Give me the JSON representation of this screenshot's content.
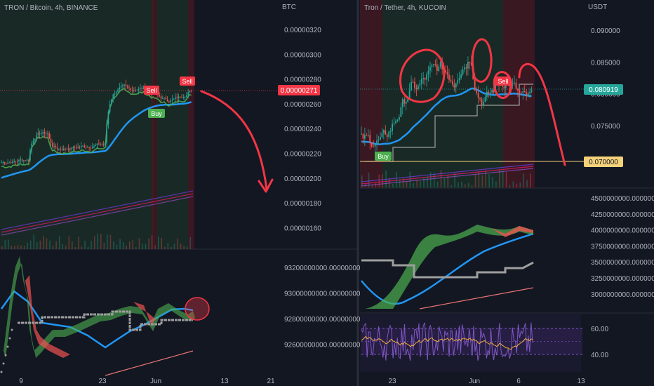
{
  "chart_data": [
    {
      "type": "candlestick",
      "title": "TRON / Bitcoin, 4h, BINANCE",
      "currency": "BTC",
      "y_ticks": [
        "0.00000320",
        "0.00000300",
        "0.00000280",
        "0.00000260",
        "0.00000240",
        "0.00000220",
        "0.00000200",
        "0.00000180",
        "0.00000160"
      ],
      "ylim": [
        1.45e-06,
        3.4e-06
      ],
      "price_tag": "0.00000271",
      "close": 2.71e-06,
      "x_ticks": [
        "9",
        "23",
        "Jun",
        "13",
        "21"
      ],
      "annotations": [
        "Sell",
        "Sell",
        "Buy"
      ],
      "overlays": [
        "blue moving average",
        "green ribbon",
        "red ribbon",
        "purple/pink lines",
        "red hand-drawn arrow"
      ],
      "colors": {
        "up": "#26a69a",
        "down": "#ef5350",
        "buy": "#4caf50",
        "sell": "#f23645",
        "ma": "#2196f3"
      }
    },
    {
      "type": "line",
      "title": "",
      "y_ticks": [
        "93200000000.00000000",
        "93000000000.00000000",
        "92800000000.00000000",
        "92600000000.00000000"
      ],
      "indicator": "oscillator with blue line and red/green ribbon"
    },
    {
      "type": "candlestick",
      "title": "Tron / Tether, 4h, KUCOIN",
      "currency": "USDT",
      "y_ticks": [
        "0.090000",
        "0.085000",
        "0.080000",
        "0.075000"
      ],
      "ylim": [
        0.0665,
        0.0935
      ],
      "price_tag": "0.080919",
      "support_tag": "0.070000",
      "close": 0.080919,
      "support": 0.07,
      "x_ticks": [
        "23",
        "Jun",
        "6",
        "13"
      ],
      "annotations": [
        "Sell",
        "Buy"
      ],
      "colors": {
        "up": "#26a69a",
        "down": "#ef5350",
        "support": "#f5d27a"
      }
    },
    {
      "type": "line",
      "title": "",
      "y_ticks": [
        "4500000000.000000",
        "4250000000.000000",
        "4000000000.000000",
        "3750000000.000000",
        "3500000000.000000",
        "3250000000.000000",
        "3000000000.000000"
      ]
    },
    {
      "type": "line",
      "title": "",
      "y_ticks": [
        "60.00",
        "40.00"
      ],
      "ylim": [
        30,
        75
      ],
      "band": [
        40,
        60
      ]
    }
  ]
}
